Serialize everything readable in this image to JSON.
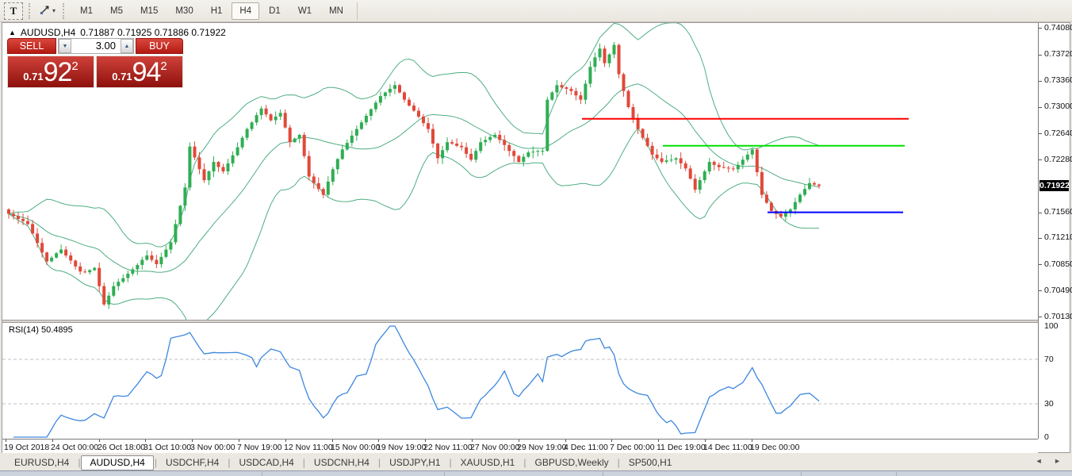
{
  "toolbar": {
    "text_tool_label": "T",
    "cursor_dropdown_caret": "▾",
    "periods": [
      "M1",
      "M5",
      "M15",
      "M30",
      "H1",
      "H4",
      "D1",
      "W1",
      "MN"
    ],
    "active_period": "H4"
  },
  "window": {
    "collapse_icon": "▲",
    "title": "AUDUSD,H4",
    "ohlc_text": "0.71887 0.71925 0.71886 0.71922"
  },
  "trade_panel": {
    "sell_label": "SELL",
    "buy_label": "BUY",
    "volume": "3.00",
    "spin_down": "▼",
    "spin_up": "▲",
    "sell_price_small": "0.71",
    "sell_price_big": "92",
    "sell_price_sup": "2",
    "buy_price_small": "0.71",
    "buy_price_big": "94",
    "buy_price_sup": "2"
  },
  "chart_data": {
    "type": "candlestick",
    "title": "AUDUSD,H4",
    "ohlc_display": {
      "open": "0.71887",
      "high": "0.71925",
      "low": "0.71886",
      "close": "0.71922"
    },
    "price_range": {
      "max": 0.7415,
      "min": 0.70091
    },
    "price_axis_labels": [
      "0.74080",
      "0.73720",
      "0.73360",
      "0.73000",
      "0.72640",
      "0.72280",
      "0.71560",
      "0.71210",
      "0.70850",
      "0.70490",
      "0.70130"
    ],
    "price_tag": "0.71922",
    "closes": [
      0.7154,
      0.7151,
      0.7147,
      0.7144,
      0.714,
      0.7127,
      0.7114,
      0.7101,
      0.7089,
      0.7094,
      0.71,
      0.7105,
      0.7097,
      0.709,
      0.7082,
      0.7075,
      0.7074,
      0.7077,
      0.708,
      0.7055,
      0.703,
      0.7042,
      0.7055,
      0.7061,
      0.7066,
      0.7072,
      0.7078,
      0.7084,
      0.7091,
      0.7097,
      0.7091,
      0.7085,
      0.7095,
      0.7105,
      0.7115,
      0.714,
      0.7165,
      0.719,
      0.7246,
      0.7231,
      0.7215,
      0.72,
      0.7212,
      0.7225,
      0.7218,
      0.7212,
      0.7223,
      0.7234,
      0.7245,
      0.7258,
      0.727,
      0.7279,
      0.7289,
      0.7298,
      0.729,
      0.7282,
      0.7287,
      0.7292,
      0.7272,
      0.7252,
      0.7257,
      0.7262,
      0.7233,
      0.7205,
      0.7196,
      0.7188,
      0.718,
      0.7198,
      0.7215,
      0.7229,
      0.7242,
      0.7251,
      0.7261,
      0.727,
      0.7279,
      0.7288,
      0.7297,
      0.7306,
      0.7315,
      0.732,
      0.7325,
      0.733,
      0.732,
      0.731,
      0.7302,
      0.7295,
      0.7287,
      0.7278,
      0.727,
      0.725,
      0.723,
      0.7241,
      0.7252,
      0.725,
      0.7247,
      0.7245,
      0.7236,
      0.7228,
      0.724,
      0.7252,
      0.7255,
      0.7259,
      0.7262,
      0.7255,
      0.7248,
      0.724,
      0.7233,
      0.7225,
      0.7232,
      0.7238,
      0.7239,
      0.724,
      0.724,
      0.731,
      0.732,
      0.733,
      0.7327,
      0.7325,
      0.7322,
      0.7316,
      0.731,
      0.7332,
      0.7355,
      0.7368,
      0.738,
      0.736,
      0.7372,
      0.7385,
      0.7345,
      0.7322,
      0.73,
      0.7285,
      0.727,
      0.7258,
      0.7247,
      0.7235,
      0.723,
      0.7225,
      0.7227,
      0.7228,
      0.723,
      0.7223,
      0.7216,
      0.7202,
      0.7187,
      0.72,
      0.7212,
      0.7225,
      0.7221,
      0.7218,
      0.7217,
      0.7216,
      0.7215,
      0.7221,
      0.7228,
      0.7235,
      0.7242,
      0.7211,
      0.718,
      0.7169,
      0.7158,
      0.7154,
      0.715,
      0.7155,
      0.716,
      0.717,
      0.718,
      0.7188,
      0.7196,
      0.7194,
      0.71922
    ],
    "bollinger": {
      "period": 20,
      "deviations": 2
    },
    "rsi": {
      "label": "RSI(14) 50.4895",
      "period": 14,
      "value": 50.4895,
      "levels": [
        70,
        30
      ],
      "axis_labels": [
        "100",
        "70",
        "30",
        "0"
      ]
    },
    "hlines": [
      {
        "name": "resistance-red",
        "color": "#ff0000",
        "price": 0.7284,
        "x1": 0.56,
        "x2": 0.875
      },
      {
        "name": "resistance-green",
        "color": "#00e000",
        "price": 0.7247,
        "x1": 0.638,
        "x2": 0.871
      },
      {
        "name": "support-blue",
        "color": "#0000ff",
        "price": 0.7156,
        "x1": 0.739,
        "x2": 0.87
      }
    ],
    "time_labels": [
      "19 Oct 2018",
      "24 Oct 00:00",
      "26 Oct 18:00",
      "31 Oct 10:00",
      "3 Nov 00:00",
      "7 Nov 19:00",
      "12 Nov 11:00",
      "15 Nov 00:00",
      "19 Nov 19:00",
      "22 Nov 11:00",
      "27 Nov 00:00",
      "29 Nov 19:00",
      "4 Dec 11:00",
      "7 Dec 00:00",
      "11 Dec 19:00",
      "14 Dec 11:00",
      "19 Dec 00:00"
    ],
    "colors": {
      "up": "#2fae53",
      "down": "#e0493a",
      "band": "#4fae82",
      "rsi": "#3d87de",
      "rsi_level": "#c0c0c0"
    }
  },
  "tabs": {
    "items": [
      "EURUSD,H4",
      "AUDUSD,H4",
      "USDCHF,H4",
      "USDCAD,H4",
      "USDCNH,H4",
      "USDJPY,H1",
      "XAUUSD,H1",
      "GBPUSD,Weekly",
      "SP500,H1"
    ],
    "active": "AUDUSD,H4",
    "separator": "|",
    "nav_left": "◄",
    "nav_right": "►"
  }
}
